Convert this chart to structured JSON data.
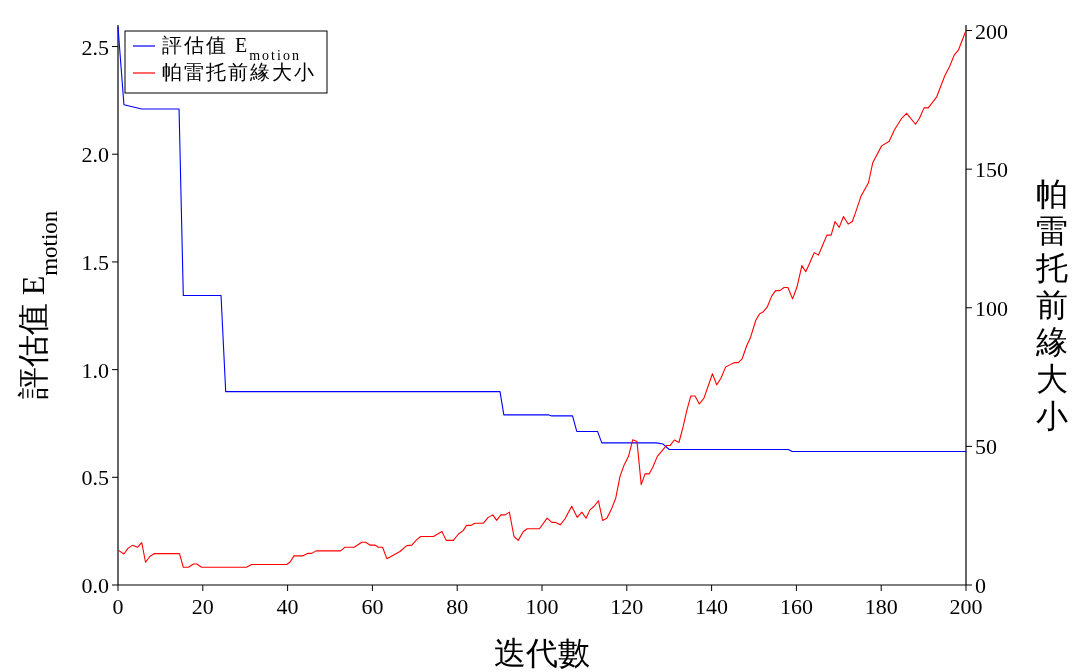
{
  "chart_data": {
    "type": "line",
    "xlabel": "迭代數",
    "ylabel": "評估值 E$_{motion}$",
    "y2label": "帕雷托前緣大小",
    "legend": "top left",
    "xlim": [
      0,
      200
    ],
    "xticks": [
      0,
      20,
      40,
      60,
      80,
      100,
      120,
      140,
      160,
      180,
      200
    ],
    "ylim": [
      0,
      2.6
    ],
    "yticks": [
      {
        "value": 0,
        "label": "0.0"
      },
      {
        "value": 0.5,
        "label": "0.5"
      },
      {
        "value": 1,
        "label": "1.0"
      },
      {
        "value": 1.5,
        "label": "1.5"
      },
      {
        "value": 2,
        "label": "2.0"
      },
      {
        "value": 2.5,
        "label": "2.5"
      }
    ],
    "y2lim": [
      0,
      202
    ],
    "y2ticks": [
      0,
      50,
      100,
      150,
      200
    ],
    "series": [
      {
        "name": "評估值 E$_{motion}$",
        "color": "#0000ff",
        "x": [
          0,
          1.4,
          5.6,
          14.4,
          15.4,
          24.3,
          25.4,
          90.1,
          91.0,
          101.5,
          102.3,
          107.2,
          108.2,
          113.1,
          114.1,
          127.0,
          128.5,
          130.0,
          158.1,
          159.0,
          200
        ],
        "values": [
          2.59,
          2.23,
          2.21,
          2.21,
          1.344,
          1.344,
          0.898,
          0.898,
          0.79,
          0.79,
          0.785,
          0.785,
          0.713,
          0.713,
          0.66,
          0.66,
          0.655,
          0.629,
          0.629,
          0.62,
          0.62
        ]
      },
      {
        "name": "帕雷托前緣大小",
        "color": "#ff0000",
        "axis": "y2",
        "x": [
          0.2,
          1.4,
          2.4,
          3.4,
          4.6,
          5.6,
          6.5,
          7.5,
          8.5,
          14.5,
          15.4,
          16.6,
          17.8,
          18.6,
          19.7,
          30.3,
          31.5,
          39.8,
          40.6,
          41.5,
          43.5,
          44.7,
          45.7,
          46.7,
          52.5,
          53.5,
          55.7,
          57.5,
          58.4,
          59.4,
          60.6,
          61.4,
          62.4,
          63.4,
          66.5,
          68.1,
          69.3,
          70.4,
          71.4,
          74.4,
          76.4,
          77.4,
          79.1,
          80.3,
          81.4,
          82.2,
          83.2,
          84.2,
          86.2,
          87.3,
          88.4,
          89.3,
          90.3,
          91.3,
          92.3,
          93.4,
          94.4,
          95.6,
          96.5,
          99.4,
          101.2,
          102.3,
          103.1,
          104.3,
          105.4,
          107.0,
          108.3,
          109.4,
          110.4,
          111.3,
          112.3,
          113.3,
          114.3,
          115.3,
          116.3,
          117.4,
          118.4,
          119.4,
          120.4,
          121.4,
          122.4,
          123.4,
          124.3,
          125.3,
          126.1,
          127.2,
          128.2,
          129.3,
          130.2,
          131.2,
          132.3,
          133.3,
          134.1,
          135.1,
          136.1,
          137.1,
          138.2,
          140.2,
          141.2,
          142.2,
          143.3,
          144.3,
          145.3,
          146.3,
          147.2,
          148.3,
          149.2,
          150.4,
          151.3,
          152.2,
          153.1,
          154.2,
          155.1,
          156.1,
          157.1,
          158.0,
          159.1,
          160.1,
          161.3,
          162.2,
          163.2,
          164.2,
          165.2,
          166.1,
          167.2,
          168.2,
          169.1,
          170.1,
          171.1,
          172.2,
          173.2,
          174.2,
          175.2,
          177.0,
          178.0,
          180.1,
          181.9,
          183.1,
          184.8,
          186.0,
          188.1,
          189.0,
          190.1,
          191.1,
          193.1,
          195.0,
          196.1,
          197.2,
          198.2,
          200.0
        ],
        "values": [
          12.4,
          11.2,
          13.3,
          14.3,
          13.6,
          15.3,
          8.2,
          10.3,
          11.3,
          11.3,
          6.4,
          6.4,
          7.6,
          7.6,
          6.4,
          6.4,
          7.4,
          7.4,
          8.3,
          10.5,
          10.5,
          11.4,
          11.4,
          12.3,
          12.3,
          13.6,
          13.6,
          15.4,
          15.4,
          14.4,
          14.4,
          13.6,
          13.6,
          9.5,
          12.1,
          14.2,
          14.4,
          16.3,
          17.5,
          17.5,
          19.3,
          16.1,
          16.1,
          18.4,
          19.6,
          21.5,
          21.5,
          22.3,
          22.3,
          24.4,
          25.3,
          23.3,
          25.3,
          25.3,
          26.3,
          17.5,
          16.1,
          19.3,
          20.3,
          20.3,
          24.1,
          22.6,
          22.6,
          21.7,
          23.8,
          28.4,
          24.4,
          26.3,
          24.1,
          27.1,
          28.4,
          30.4,
          23.3,
          24.1,
          27.1,
          31.4,
          39.2,
          43.4,
          46.4,
          52.4,
          51.8,
          36.2,
          40.1,
          40.1,
          42.4,
          46.4,
          48.2,
          50.3,
          50.3,
          52.3,
          51.4,
          57.2,
          62.6,
          68.2,
          68.2,
          65.3,
          67.4,
          76.2,
          72.2,
          74.6,
          78.6,
          79.4,
          80.2,
          80.2,
          81.6,
          86.4,
          89.4,
          95.4,
          97.8,
          98.6,
          100.2,
          104.3,
          106.2,
          106.2,
          107.3,
          107.3,
          103.2,
          107.3,
          115.2,
          113.0,
          116.3,
          119.9,
          119.0,
          122.3,
          126.2,
          126.2,
          131.1,
          129.0,
          132.9,
          130.2,
          131.1,
          135.5,
          140.1,
          145.1,
          152.3,
          158.4,
          160.1,
          164.1,
          168.3,
          170.1,
          166.2,
          168.3,
          172.1,
          172.1,
          176.1,
          183.7,
          186.9,
          191.1,
          192.9,
          200
        ]
      }
    ]
  }
}
